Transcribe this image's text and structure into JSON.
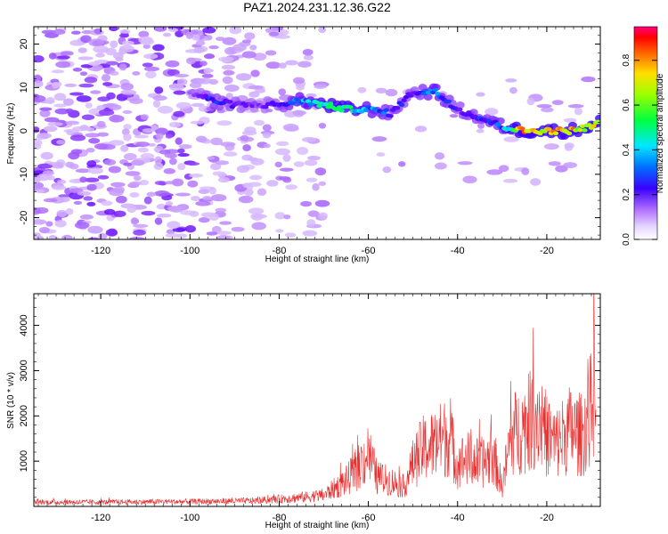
{
  "figure": {
    "title": "PAZ1.2024.231.12.36.G22"
  },
  "colors": {
    "axis": "#000000",
    "snr_line": "#e83030",
    "spectro_low": "#d9c2ff",
    "spectro_mid": "#8a3cff",
    "spectro_strong": "#3a00ff"
  },
  "chart_data": [
    {
      "id": "spectrogram",
      "type": "heatmap",
      "title": "",
      "xlabel": "Height of straight line (km)",
      "ylabel": "Frequency (Hz)",
      "xlim": [
        -135,
        -8
      ],
      "ylim": [
        -25,
        24
      ],
      "x_ticks": [
        -120,
        -100,
        -80,
        -60,
        -40,
        -20
      ],
      "y_ticks": [
        -20,
        -10,
        0,
        10,
        20
      ],
      "colorbar": {
        "label": "Normalized spectral amplitude",
        "range": [
          0,
          0.95
        ],
        "ticks": [
          0,
          0.2,
          0.4,
          0.6,
          0.8
        ],
        "tick_labels": [
          "0.0",
          "0.2",
          "0.4",
          "0.6",
          "0.8"
        ],
        "colormap": "rainbow"
      },
      "ridge": {
        "x": [
          -100,
          -95,
          -90,
          -85,
          -80,
          -75,
          -70,
          -65,
          -60,
          -55,
          -50,
          -45,
          -40,
          -35,
          -30,
          -25,
          -20,
          -15,
          -10,
          -8
        ],
        "frequency": [
          9,
          7,
          6,
          6,
          6,
          7,
          6,
          5,
          5,
          4,
          9,
          9,
          5,
          3,
          1,
          0,
          0,
          0,
          1,
          2
        ],
        "amplitude": [
          0.15,
          0.35,
          0.3,
          0.2,
          0.3,
          0.45,
          0.55,
          0.6,
          0.45,
          0.35,
          0.3,
          0.45,
          0.3,
          0.35,
          0.4,
          0.95,
          0.85,
          0.9,
          0.8,
          0.7
        ]
      }
    },
    {
      "id": "snr",
      "type": "line",
      "title": "",
      "xlabel": "Height of straight line (km)",
      "ylabel": "SNR (10 * v/v)",
      "xlim": [
        -135,
        -8
      ],
      "ylim": [
        0,
        4700
      ],
      "x_ticks": [
        -120,
        -100,
        -80,
        -60,
        -40,
        -20
      ],
      "y_ticks": [
        1000,
        2000,
        3000,
        4000
      ],
      "envelope": {
        "x": [
          -135,
          -120,
          -100,
          -85,
          -80,
          -75,
          -70,
          -67,
          -65,
          -62,
          -60,
          -58,
          -55,
          -52,
          -50,
          -48,
          -45,
          -42,
          -40,
          -38,
          -35,
          -32,
          -30,
          -28,
          -25,
          -22,
          -20,
          -18,
          -15,
          -12,
          -10,
          -9
        ],
        "y": [
          150,
          150,
          170,
          200,
          260,
          320,
          400,
          700,
          900,
          1400,
          1900,
          1000,
          900,
          700,
          1500,
          2000,
          2200,
          2500,
          1500,
          1700,
          1500,
          1800,
          700,
          2500,
          2800,
          3300,
          2500,
          2200,
          2700,
          2500,
          3500,
          4600
        ]
      }
    }
  ]
}
